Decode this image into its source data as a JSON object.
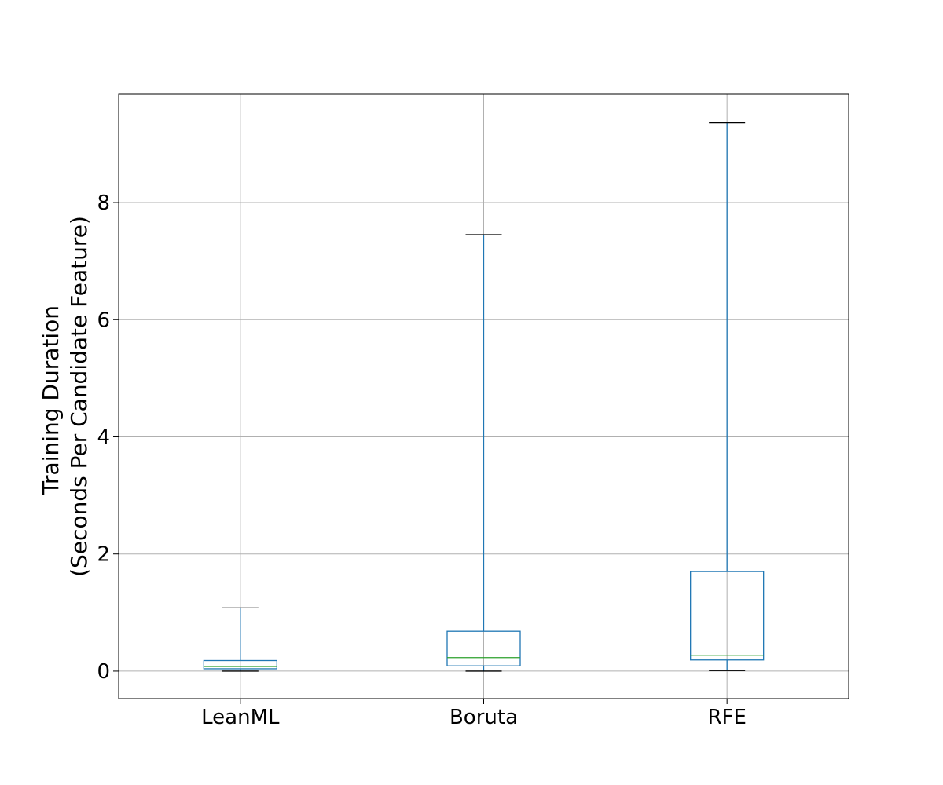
{
  "chart_data": {
    "type": "boxplot",
    "title": "",
    "xlabel": "",
    "ylabel": [
      "Training Duration",
      "(Seconds Per Candidate Feature)"
    ],
    "ylim": [
      -0.47,
      9.85
    ],
    "yticks": [
      0,
      2,
      4,
      6,
      8
    ],
    "ytick_labels": [
      "0",
      "2",
      "4",
      "6",
      "8"
    ],
    "grid": true,
    "legend": "none",
    "categories": [
      "LeanML",
      "Boruta",
      "RFE"
    ],
    "boxes": [
      {
        "name": "LeanML",
        "whisker_low": 0.0,
        "q1": 0.04,
        "median": 0.08,
        "q3": 0.18,
        "whisker_high": 1.08
      },
      {
        "name": "Boruta",
        "whisker_low": 0.0,
        "q1": 0.09,
        "median": 0.23,
        "q3": 0.68,
        "whisker_high": 7.45
      },
      {
        "name": "RFE",
        "whisker_low": 0.01,
        "q1": 0.19,
        "median": 0.27,
        "q3": 1.7,
        "whisker_high": 9.36
      }
    ],
    "colors": {
      "box": "#1f77b4",
      "median": "#2ca02c",
      "cap": "#000000",
      "grid": "#b0b0b0",
      "frame": "#000000"
    }
  }
}
